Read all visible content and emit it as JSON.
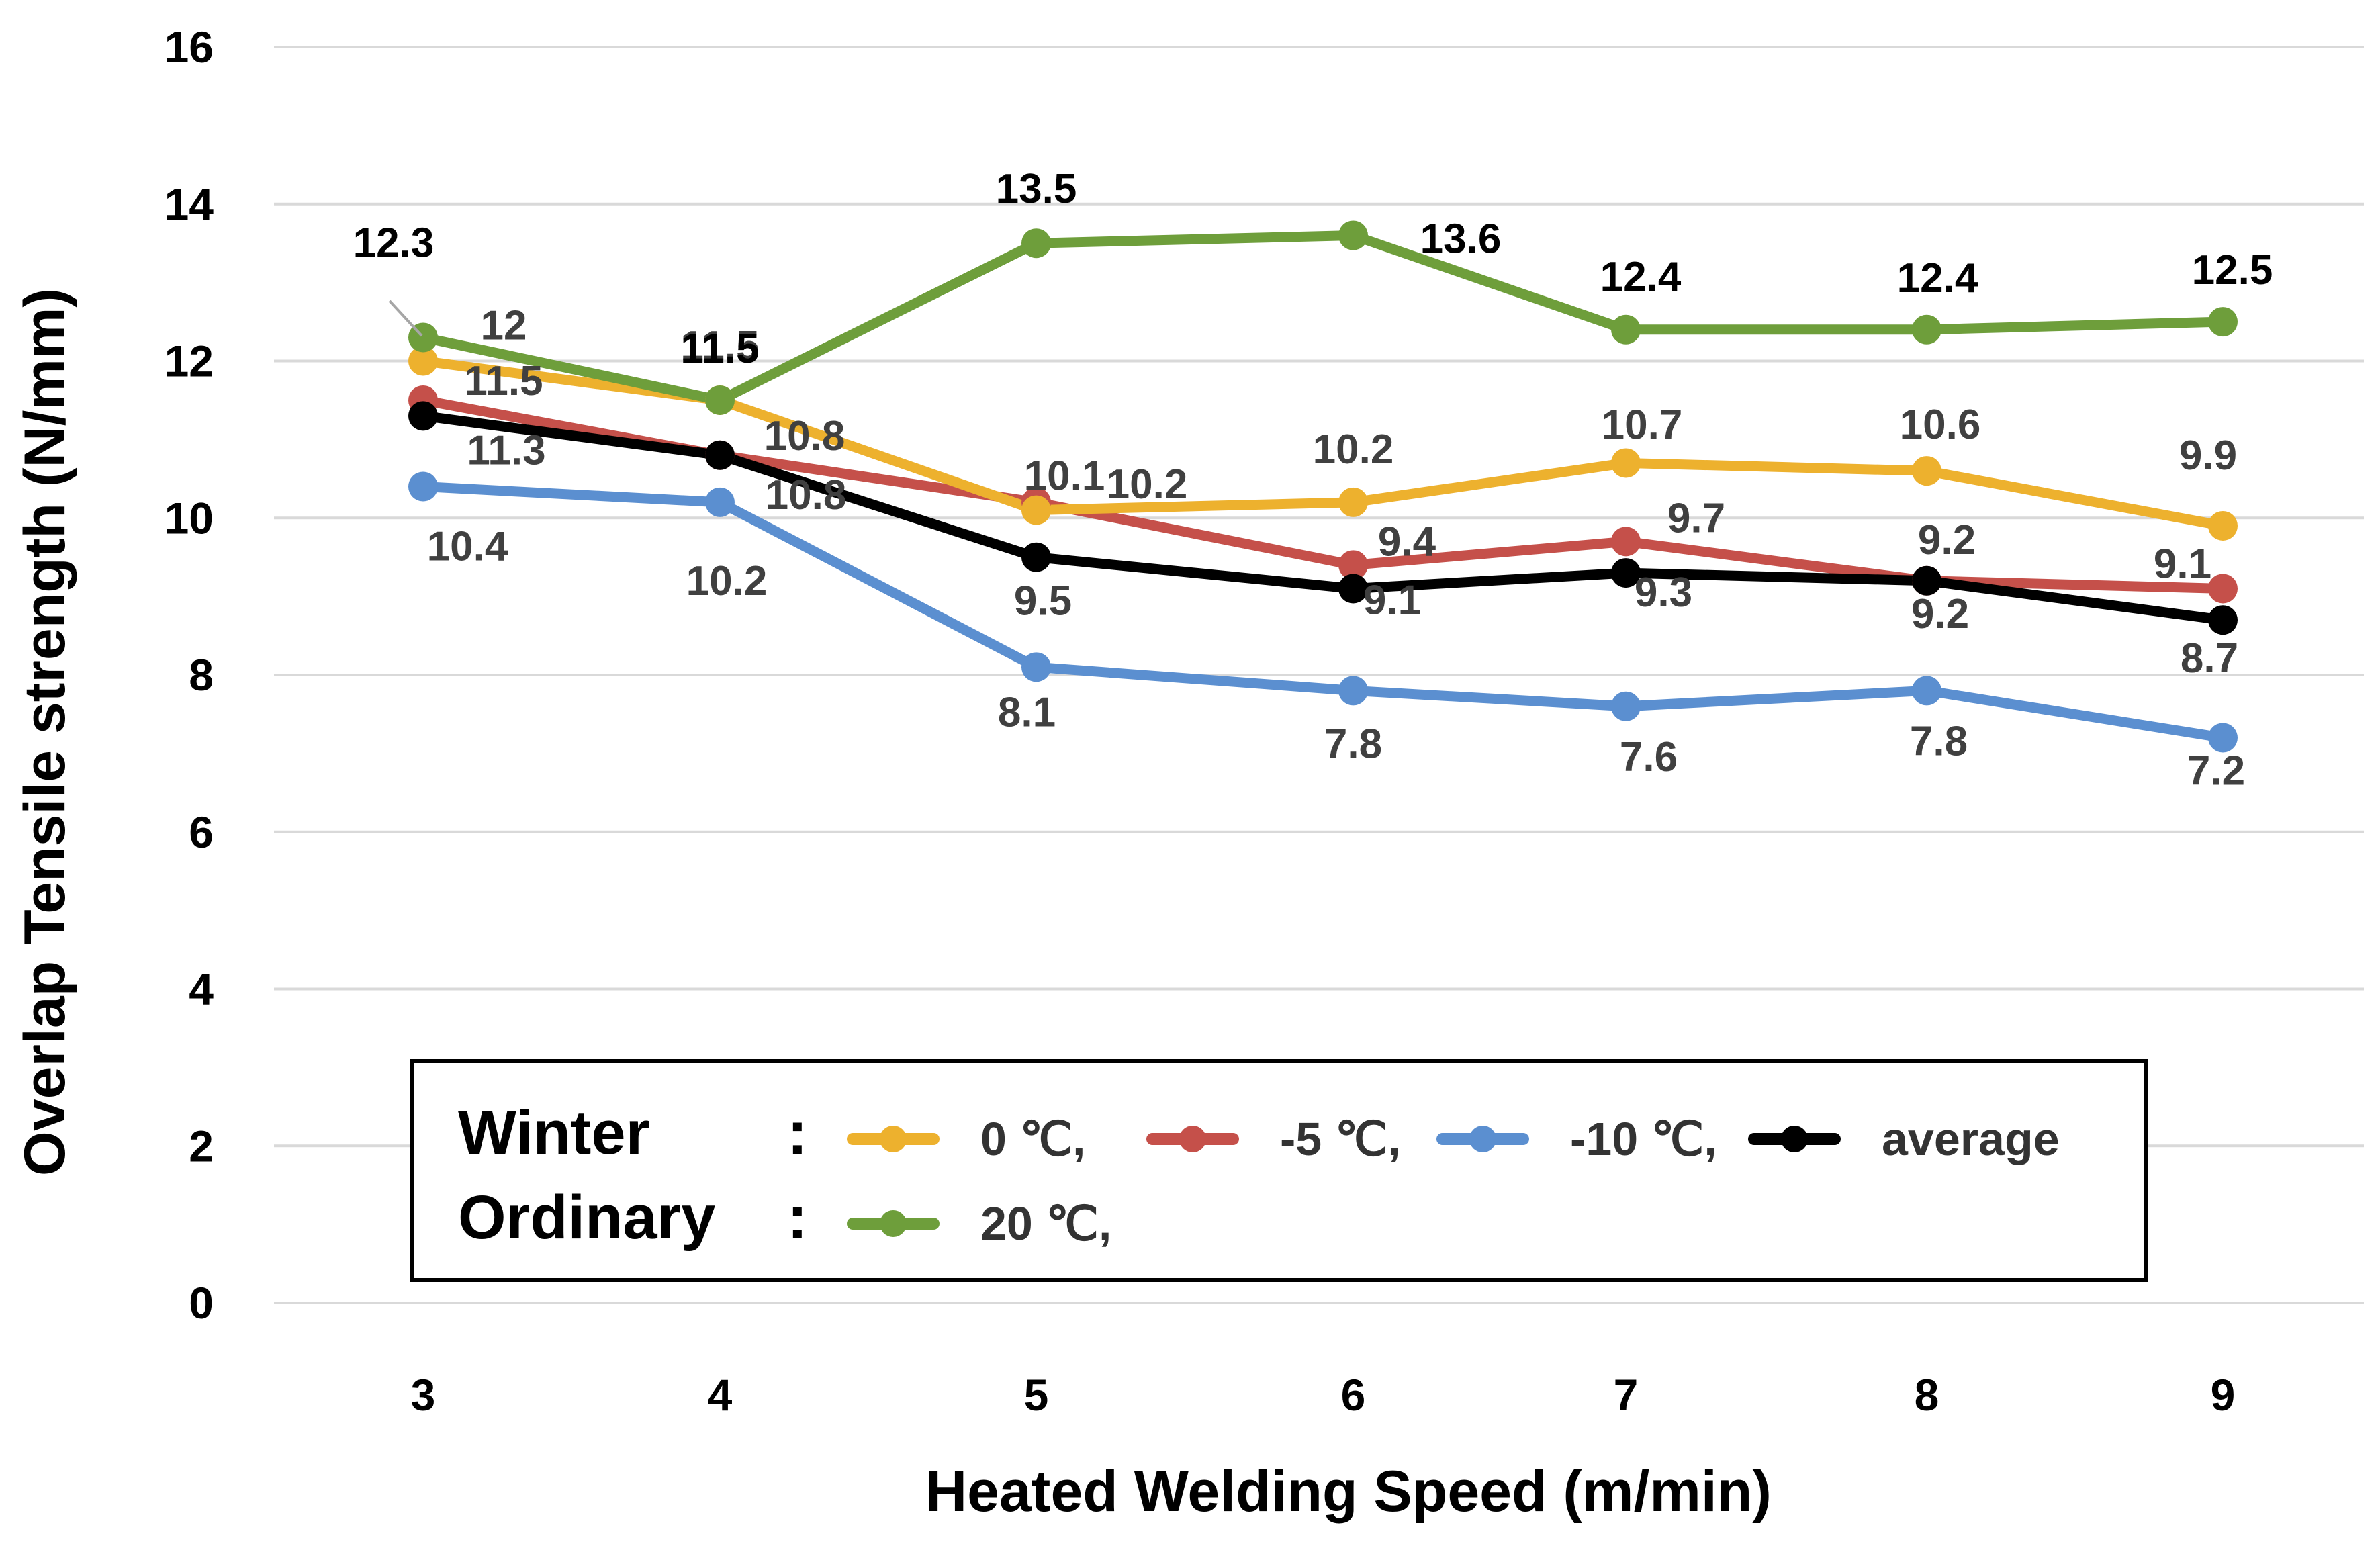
{
  "chart_data": {
    "type": "line",
    "title": "",
    "xlabel": "Heated Welding Speed (m/min)",
    "ylabel": "Overlap Tensile strength (N/mm)",
    "x": [
      3,
      4,
      5,
      6,
      7,
      8,
      9
    ],
    "ylim": [
      0,
      16
    ],
    "yticks": [
      0,
      2,
      4,
      6,
      8,
      10,
      12,
      14,
      16
    ],
    "grid": true,
    "series": [
      {
        "name": "20 ℃,",
        "color": "#6e9e3b",
        "label_color": "#000000",
        "values": [
          12.3,
          11.5,
          13.5,
          13.6,
          12.4,
          12.4,
          12.5
        ]
      },
      {
        "name": "0 ℃,",
        "color": "#edb12e",
        "label_color": "#404040",
        "values": [
          12,
          11.5,
          10.1,
          10.2,
          10.7,
          10.6,
          9.9
        ]
      },
      {
        "name": "-5 ℃,",
        "color": "#c5504a",
        "label_color": "#404040",
        "values": [
          11.5,
          10.8,
          10.2,
          9.4,
          9.7,
          9.2,
          9.1
        ]
      },
      {
        "name": "-10 ℃,",
        "color": "#5b8fd0",
        "label_color": "#404040",
        "values": [
          10.4,
          10.2,
          8.1,
          7.8,
          7.6,
          7.8,
          7.2
        ]
      },
      {
        "name": "average",
        "color": "#000000",
        "label_color": "#404040",
        "values": [
          11.3,
          10.8,
          9.5,
          9.1,
          9.3,
          9.2,
          8.7
        ]
      }
    ],
    "legend": {
      "placement": "bottom-center",
      "winter_label": "Winter",
      "ordinary_label": "Ordinary",
      "separator": ":"
    }
  }
}
